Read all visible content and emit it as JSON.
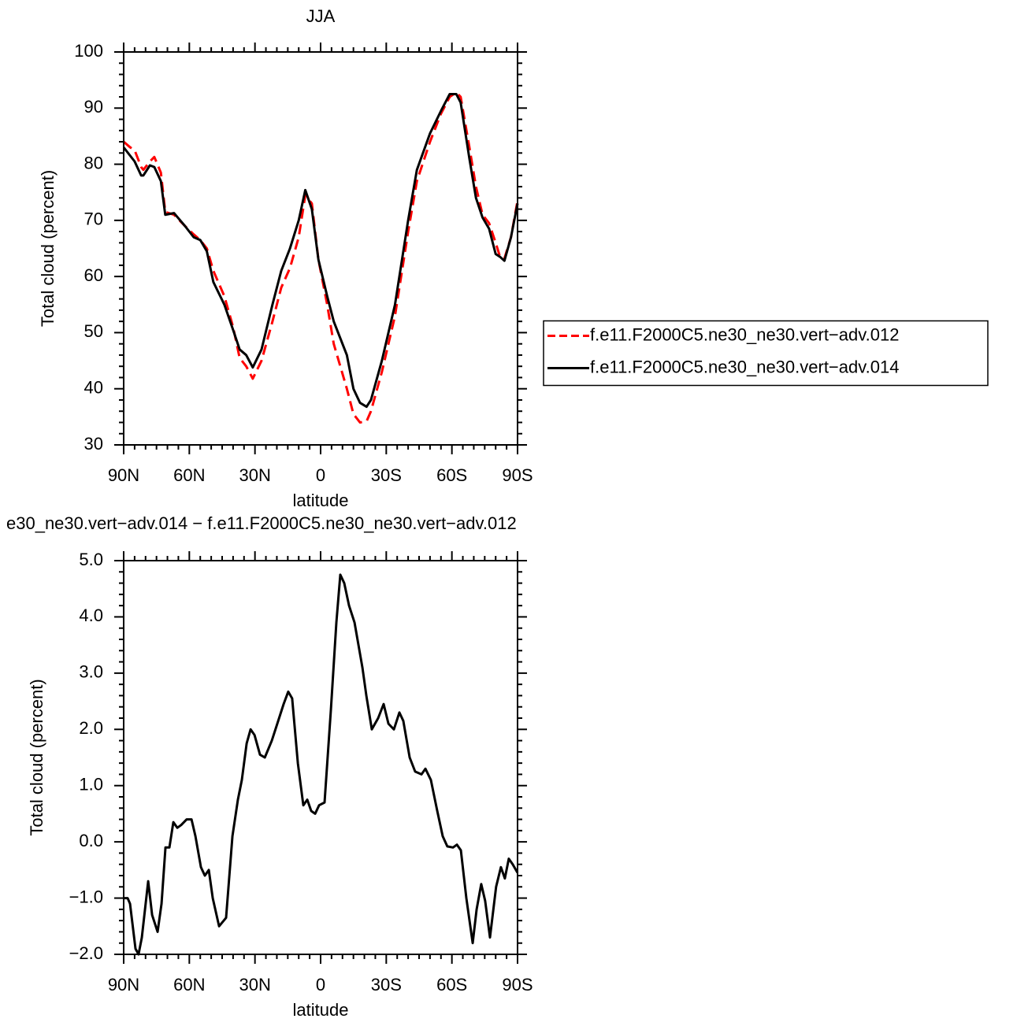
{
  "chart_data": [
    {
      "type": "line",
      "title": "JJA",
      "xlabel": "latitude",
      "ylabel": "Total cloud (percent)",
      "x": [
        90,
        87,
        85,
        82,
        81,
        78,
        76,
        73,
        71,
        67,
        62,
        58,
        55,
        52,
        49,
        44,
        40,
        37,
        34,
        31,
        27,
        22,
        18,
        14,
        10,
        7,
        4,
        1,
        -3,
        -6,
        -12,
        -15,
        -18,
        -21,
        -23,
        -28,
        -34,
        -40,
        -44,
        -50,
        -55,
        -59,
        -62,
        -64,
        -68,
        -71,
        -74,
        -77,
        -80,
        -82,
        -84,
        -87,
        -90
      ],
      "series": [
        {
          "name": "f.e11.F2000C5.ne30_ne30.vert−adv.012",
          "color": "#ff0000",
          "linestyle": "dashed",
          "values": [
            84,
            83,
            82.5,
            79.5,
            79,
            80.5,
            81.3,
            78.5,
            71.5,
            71,
            69,
            67.5,
            66.5,
            65,
            61,
            56.5,
            51,
            45.5,
            44,
            41.8,
            45,
            52,
            58,
            61.5,
            67,
            74.5,
            73,
            63,
            55,
            48,
            40,
            35.5,
            34,
            34.2,
            36,
            43,
            53,
            68,
            77,
            84,
            89,
            92,
            92.8,
            92,
            83,
            76,
            71,
            69.5,
            66,
            63.5,
            63.2,
            67,
            73.5
          ]
        },
        {
          "name": "f.e11.F2000C5.ne30_ne30.vert−adv.014",
          "color": "#000000",
          "linestyle": "solid",
          "values": [
            83,
            81.5,
            80.5,
            78,
            78,
            79.8,
            79.5,
            77,
            71,
            71.3,
            69,
            67,
            66.5,
            64.5,
            59,
            55,
            50.5,
            47,
            46,
            43.8,
            47,
            55,
            61,
            65,
            70,
            75.4,
            72,
            63,
            56.5,
            52,
            46,
            40,
            37.5,
            36.8,
            38,
            45,
            55,
            70,
            79,
            85.5,
            89.5,
            92.5,
            92.5,
            91,
            81,
            74,
            70.5,
            68.5,
            64,
            63.5,
            62.8,
            67,
            73
          ]
        }
      ],
      "xlim": [
        90,
        -90
      ],
      "xticks": [
        {
          "value": 90,
          "label": "90N"
        },
        {
          "value": 60,
          "label": "60N"
        },
        {
          "value": 30,
          "label": "30N"
        },
        0,
        {
          "value": -30,
          "label": "30S"
        },
        {
          "value": -60,
          "label": "60S"
        },
        {
          "value": -90,
          "label": "90S"
        }
      ],
      "ylim": [
        30,
        100
      ],
      "yticks": [
        30,
        40,
        50,
        60,
        70,
        80,
        90,
        100
      ],
      "legend": "right"
    },
    {
      "type": "line",
      "title": "e30_ne30.vert−adv.014 − f.e11.F2000C5.ne30_ne30.vert−adv.012",
      "xlabel": "latitude",
      "ylabel": "Total cloud (percent)",
      "x": [
        90,
        88.2,
        87.1,
        84.6,
        83.2,
        81.7,
        78.8,
        77,
        74.5,
        72.7,
        70.9,
        69.1,
        67.3,
        65.5,
        63.7,
        61.2,
        59,
        57.2,
        54.7,
        52.9,
        51.1,
        49.3,
        46.4,
        43.2,
        40.3,
        37.8,
        36,
        33.8,
        32,
        30.2,
        27.7,
        25.5,
        22.3,
        19.8,
        16.9,
        14.8,
        13,
        10.4,
        7.9,
        6.1,
        4.3,
        2.5,
        0.7,
        -1.8,
        -4.7,
        -7.2,
        -9,
        -10.8,
        -13,
        -15.5,
        -19.1,
        -20.9,
        -23.4,
        -26.3,
        -28.8,
        -31,
        -33.5,
        -36,
        -37.8,
        -40.7,
        -43.2,
        -46.1,
        -47.9,
        -50.4,
        -53.3,
        -55.8,
        -57.9,
        -60.5,
        -62.3,
        -64.1,
        -66.6,
        -69.5,
        -71.3,
        -73.4,
        -75.2,
        -77.4,
        -80.2,
        -82.4,
        -84.2,
        -86,
        -87.8,
        -90
      ],
      "series": [
        {
          "color": "#000000",
          "linestyle": "solid",
          "values": [
            -1.0,
            -1.0,
            -1.1,
            -1.9,
            -2.0,
            -1.7,
            -0.7,
            -1.3,
            -1.6,
            -1.1,
            -0.1,
            -0.1,
            0.35,
            0.25,
            0.3,
            0.4,
            0.4,
            0.1,
            -0.45,
            -0.6,
            -0.5,
            -1.0,
            -1.5,
            -1.35,
            0.1,
            0.75,
            1.1,
            1.75,
            2.0,
            1.9,
            1.55,
            1.5,
            1.8,
            2.1,
            2.45,
            2.67,
            2.55,
            1.4,
            0.65,
            0.75,
            0.55,
            0.5,
            0.65,
            0.7,
            2.35,
            3.9,
            4.75,
            4.6,
            4.2,
            3.9,
            3.1,
            2.6,
            2.0,
            2.2,
            2.45,
            2.1,
            2.0,
            2.3,
            2.15,
            1.5,
            1.25,
            1.2,
            1.3,
            1.1,
            0.55,
            0.1,
            -0.08,
            -0.1,
            -0.05,
            -0.15,
            -1.0,
            -1.8,
            -1.2,
            -0.75,
            -1.05,
            -1.7,
            -0.8,
            -0.45,
            -0.65,
            -0.3,
            -0.4,
            -0.55
          ]
        }
      ],
      "xlim": [
        90,
        -90
      ],
      "xticks": [
        {
          "value": 90,
          "label": "90N"
        },
        {
          "value": 60,
          "label": "60N"
        },
        {
          "value": 30,
          "label": "30N"
        },
        0,
        {
          "value": -30,
          "label": "30S"
        },
        {
          "value": -60,
          "label": "60S"
        },
        {
          "value": -90,
          "label": "90S"
        }
      ],
      "ylim": [
        -2.0,
        5.0
      ],
      "yticks": [
        {
          "value": -2.0,
          "label": "−2.0"
        },
        {
          "value": -1.0,
          "label": "−1.0"
        },
        {
          "value": 0.0,
          "label": "0.0"
        },
        {
          "value": 1.0,
          "label": "1.0"
        },
        {
          "value": 2.0,
          "label": "2.0"
        },
        {
          "value": 3.0,
          "label": "3.0"
        },
        {
          "value": 4.0,
          "label": "4.0"
        },
        {
          "value": 5.0,
          "label": "5.0"
        }
      ]
    }
  ]
}
